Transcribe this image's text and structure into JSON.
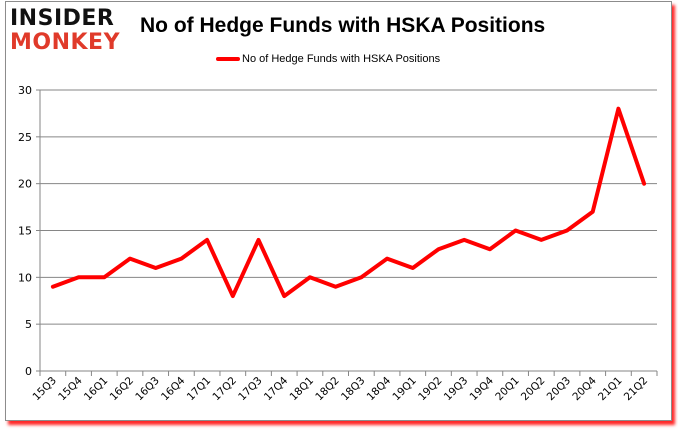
{
  "header": {
    "logo_line1": "INSIDER",
    "logo_line2": "MONKEY",
    "title": "No of Hedge Funds with HSKA Positions"
  },
  "legend": {
    "label": "No of Hedge Funds with HSKA Positions",
    "color": "#ff0000"
  },
  "chart_data": {
    "type": "line",
    "title": "No of Hedge Funds with HSKA Positions",
    "xlabel": "",
    "ylabel": "",
    "ylim": [
      0,
      30
    ],
    "yticks": [
      0,
      5,
      10,
      15,
      20,
      25,
      30
    ],
    "grid": true,
    "legend_position": "top",
    "categories": [
      "15Q3",
      "15Q4",
      "16Q1",
      "16Q2",
      "16Q3",
      "16Q4",
      "17Q1",
      "17Q2",
      "17Q3",
      "17Q4",
      "18Q1",
      "18Q2",
      "18Q3",
      "18Q4",
      "19Q1",
      "19Q2",
      "19Q3",
      "19Q4",
      "20Q1",
      "20Q2",
      "20Q3",
      "20Q4",
      "21Q1",
      "21Q2"
    ],
    "series": [
      {
        "name": "No of Hedge Funds with HSKA Positions",
        "color": "#ff0000",
        "values": [
          9,
          10,
          10,
          12,
          11,
          12,
          14,
          8,
          14,
          8,
          10,
          9,
          10,
          12,
          11,
          13,
          14,
          13,
          15,
          14,
          15,
          17,
          28,
          20
        ]
      }
    ]
  }
}
